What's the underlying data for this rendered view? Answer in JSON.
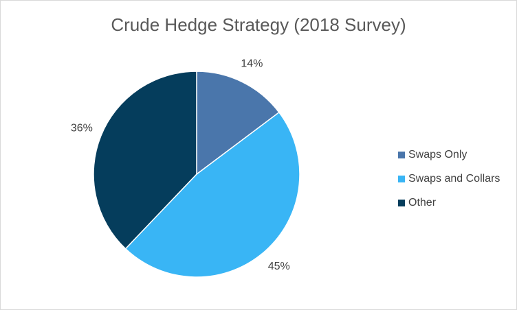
{
  "chart_data": {
    "type": "pie",
    "title": "Crude Hedge Strategy (2018 Survey)",
    "categories": [
      "Swaps Only",
      "Swaps and Collars",
      "Other"
    ],
    "values": [
      14,
      45,
      36
    ],
    "labels": [
      "14%",
      "45%",
      "36%"
    ],
    "colors": [
      "#4a76ab",
      "#39b5f5",
      "#053d5c"
    ],
    "legend_position": "right"
  }
}
